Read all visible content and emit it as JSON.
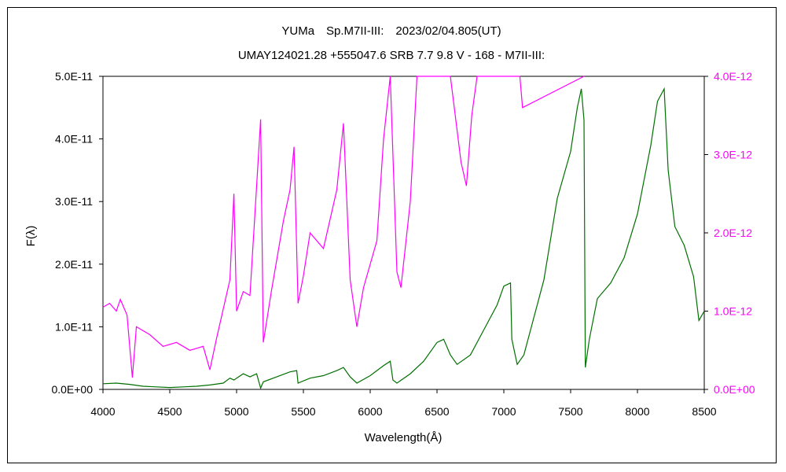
{
  "chart_data": {
    "type": "line",
    "title": "YUMa　Sp.M7II-III:　2023/02/04.805(UT)",
    "subtitle": "UMAY124021.28 +555047.6 SRB 7.7 9.8 V - 168 - M7II-III:",
    "xlabel": "Wavelength(Å)",
    "ylabel": "F(λ)",
    "xlim": [
      4000,
      8500
    ],
    "ylim_left": [
      0,
      5e-11
    ],
    "ylim_right": [
      0,
      4e-12
    ],
    "x_ticks": [
      "4000",
      "4500",
      "5000",
      "5500",
      "6000",
      "6500",
      "7000",
      "7500",
      "8000",
      "8500"
    ],
    "y_ticks_left": [
      "0.0E+00",
      "1.0E-11",
      "2.0E-11",
      "3.0E-11",
      "4.0E-11",
      "5.0E-11"
    ],
    "y_ticks_right": [
      "0.0E+00",
      "1.0E-12",
      "2.0E-12",
      "3.0E-12",
      "4.0E-12"
    ],
    "grid": false,
    "colors": {
      "left_series": "#007000",
      "right_series": "#ff00ff",
      "axis": "#000000"
    },
    "series": [
      {
        "axis": "left",
        "color": "#007000",
        "points": [
          [
            4000,
            9e-13
          ],
          [
            4100,
            1e-12
          ],
          [
            4200,
            8e-13
          ],
          [
            4300,
            5e-13
          ],
          [
            4400,
            4e-13
          ],
          [
            4500,
            3e-13
          ],
          [
            4600,
            4e-13
          ],
          [
            4700,
            5e-13
          ],
          [
            4800,
            7e-13
          ],
          [
            4900,
            1e-12
          ],
          [
            4950,
            1.8e-12
          ],
          [
            4980,
            1.5e-12
          ],
          [
            5050,
            2.5e-12
          ],
          [
            5100,
            2e-12
          ],
          [
            5150,
            2.5e-12
          ],
          [
            5180,
            2e-13
          ],
          [
            5200,
            1.2e-12
          ],
          [
            5300,
            2e-12
          ],
          [
            5400,
            2.8e-12
          ],
          [
            5450,
            3e-12
          ],
          [
            5460,
            1e-12
          ],
          [
            5550,
            1.8e-12
          ],
          [
            5650,
            2.2e-12
          ],
          [
            5750,
            3e-12
          ],
          [
            5800,
            3.5e-12
          ],
          [
            5850,
            2e-12
          ],
          [
            5900,
            1e-12
          ],
          [
            6000,
            2.2e-12
          ],
          [
            6100,
            3.8e-12
          ],
          [
            6150,
            4.5e-12
          ],
          [
            6170,
            1.5e-12
          ],
          [
            6200,
            1e-12
          ],
          [
            6300,
            2.5e-12
          ],
          [
            6400,
            4.5e-12
          ],
          [
            6500,
            7.5e-12
          ],
          [
            6550,
            8e-12
          ],
          [
            6600,
            5.5e-12
          ],
          [
            6650,
            4e-12
          ],
          [
            6750,
            5.5e-12
          ],
          [
            6850,
            9.5e-12
          ],
          [
            6950,
            1.35e-11
          ],
          [
            7000,
            1.65e-11
          ],
          [
            7050,
            1.7e-11
          ],
          [
            7060,
            8e-12
          ],
          [
            7100,
            4e-12
          ],
          [
            7150,
            5.5e-12
          ],
          [
            7200,
            9.5e-12
          ],
          [
            7300,
            1.75e-11
          ],
          [
            7400,
            3.05e-11
          ],
          [
            7500,
            3.8e-11
          ],
          [
            7550,
            4.5e-11
          ],
          [
            7580,
            4.8e-11
          ],
          [
            7600,
            4.3e-11
          ],
          [
            7610,
            3.5e-12
          ],
          [
            7640,
            8e-12
          ],
          [
            7700,
            1.45e-11
          ],
          [
            7800,
            1.7e-11
          ],
          [
            7900,
            2.1e-11
          ],
          [
            8000,
            2.8e-11
          ],
          [
            8100,
            3.9e-11
          ],
          [
            8150,
            4.6e-11
          ],
          [
            8200,
            4.8e-11
          ],
          [
            8230,
            3.5e-11
          ],
          [
            8280,
            2.6e-11
          ],
          [
            8350,
            2.3e-11
          ],
          [
            8420,
            1.8e-11
          ],
          [
            8460,
            1.1e-11
          ],
          [
            8500,
            1.25e-11
          ]
        ]
      },
      {
        "axis": "right",
        "color": "#ff00ff",
        "points": [
          [
            4000,
            1.05e-12
          ],
          [
            4050,
            1.1e-12
          ],
          [
            4100,
            1e-12
          ],
          [
            4130,
            1.15e-12
          ],
          [
            4180,
            9.5e-13
          ],
          [
            4220,
            1.5e-13
          ],
          [
            4250,
            8e-13
          ],
          [
            4350,
            7e-13
          ],
          [
            4450,
            5.5e-13
          ],
          [
            4550,
            6e-13
          ],
          [
            4650,
            5e-13
          ],
          [
            4750,
            5.5e-13
          ],
          [
            4800,
            2.5e-13
          ],
          [
            4850,
            6.5e-13
          ],
          [
            4950,
            1.4e-12
          ],
          [
            4980,
            2.5e-12
          ],
          [
            5000,
            1e-12
          ],
          [
            5050,
            1.25e-12
          ],
          [
            5100,
            1.2e-12
          ],
          [
            5150,
            2.6e-12
          ],
          [
            5180,
            3.45e-12
          ],
          [
            5200,
            6e-13
          ],
          [
            5260,
            1.25e-12
          ],
          [
            5350,
            2.15e-12
          ],
          [
            5400,
            2.55e-12
          ],
          [
            5430,
            3.1e-12
          ],
          [
            5460,
            1.1e-12
          ],
          [
            5500,
            1.45e-12
          ],
          [
            5550,
            2e-12
          ],
          [
            5650,
            1.8e-12
          ],
          [
            5750,
            2.55e-12
          ],
          [
            5800,
            3.4e-12
          ],
          [
            5850,
            1.4e-12
          ],
          [
            5900,
            8e-13
          ],
          [
            5950,
            1.3e-12
          ],
          [
            6050,
            1.9e-12
          ],
          [
            6100,
            3.2e-12
          ],
          [
            6150,
            4e-12
          ],
          [
            6200,
            1.5e-12
          ],
          [
            6230,
            1.3e-12
          ],
          [
            6300,
            2.4e-12
          ],
          [
            6350,
            4e-12
          ],
          [
            6600,
            4e-12
          ],
          [
            6680,
            2.9e-12
          ],
          [
            6720,
            2.6e-12
          ],
          [
            6760,
            3.5e-12
          ],
          [
            6800,
            4e-12
          ],
          [
            7120,
            4e-12
          ],
          [
            7140,
            3.6e-12
          ],
          [
            7600,
            4e-12
          ]
        ]
      }
    ]
  }
}
